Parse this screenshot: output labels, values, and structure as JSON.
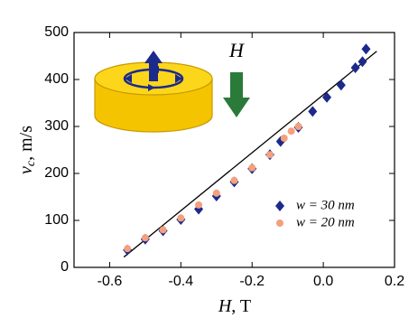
{
  "chart_data": {
    "type": "scatter",
    "xlabel": {
      "var": "H",
      "unit": ", T"
    },
    "ylabel": {
      "var": "v",
      "sub": "c",
      "unit": ", m/s"
    },
    "annotation": "H",
    "xlim": [
      -0.7,
      0.2
    ],
    "ylim": [
      0,
      500
    ],
    "xticks": [
      -0.6,
      -0.4,
      -0.2,
      {
        "value": 0,
        "label": "0.0"
      },
      0.2
    ],
    "yticks": [
      0,
      100,
      200,
      300,
      400,
      500
    ],
    "series": [
      {
        "name": "w = 30 nm",
        "color": "#1c2a8c",
        "marker": "diamond",
        "x": [
          -0.55,
          -0.5,
          -0.45,
          -0.4,
          -0.35,
          -0.3,
          -0.25,
          -0.2,
          -0.15,
          -0.12,
          -0.07,
          -0.03,
          0.01,
          0.05,
          0.09,
          0.11,
          0.12
        ],
        "values": [
          37,
          60,
          78,
          102,
          124,
          152,
          182,
          210,
          240,
          268,
          298,
          332,
          362,
          388,
          425,
          438,
          465
        ]
      },
      {
        "name": "w = 20 nm",
        "color": "#f4a07c",
        "marker": "circle",
        "x": [
          -0.55,
          -0.5,
          -0.45,
          -0.4,
          -0.35,
          -0.3,
          -0.25,
          -0.2,
          -0.15,
          -0.11,
          -0.09,
          -0.07
        ],
        "values": [
          40,
          63,
          80,
          105,
          133,
          158,
          185,
          212,
          240,
          275,
          290,
          300
        ]
      }
    ],
    "fit": {
      "x": [
        -0.56,
        0.15
      ],
      "values": [
        22,
        460
      ],
      "color": "#000"
    }
  }
}
